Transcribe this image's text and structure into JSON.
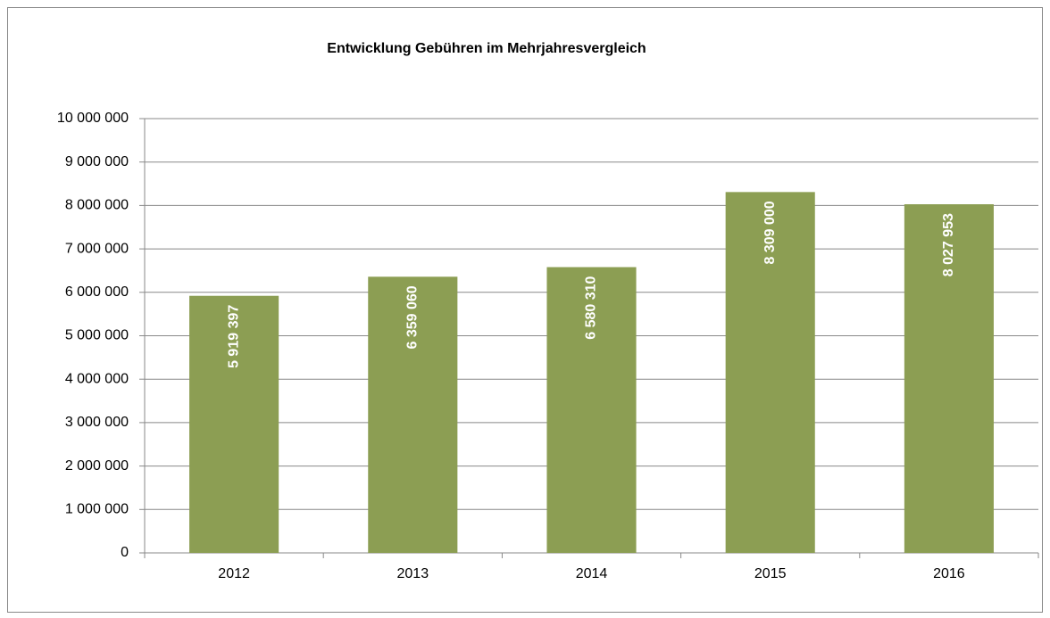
{
  "chart_data": {
    "type": "bar",
    "title": "Entwicklung Gebühren im Mehrjahresvergleich",
    "categories": [
      "2012",
      "2013",
      "2014",
      "2015",
      "2016"
    ],
    "values": [
      5919397,
      6359060,
      6580310,
      8309000,
      8027953
    ],
    "value_labels": [
      "5 919 397",
      "6 359 060",
      "6 580 310",
      "8 309 000",
      "8 027 953"
    ],
    "color": "#8c9e53",
    "ylim": [
      0,
      10000000
    ],
    "yticks": [
      0,
      {
        "value": 1000000,
        "label": "1 000 000"
      },
      {
        "value": 2000000,
        "label": "2 000 000"
      },
      {
        "value": 3000000,
        "label": "3 000 000"
      },
      {
        "value": 4000000,
        "label": "4 000 000"
      },
      {
        "value": 5000000,
        "label": "5 000 000"
      },
      {
        "value": 6000000,
        "label": "6 000 000"
      },
      {
        "value": 7000000,
        "label": "7 000 000"
      },
      {
        "value": 8000000,
        "label": "8 000 000"
      },
      {
        "value": 9000000,
        "label": "9 000 000"
      },
      {
        "value": 10000000,
        "label": "10 000 000"
      }
    ],
    "grid": true
  }
}
